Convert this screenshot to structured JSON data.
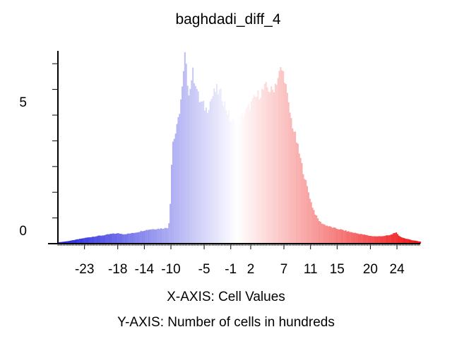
{
  "chart_data": {
    "type": "bar",
    "title": "baghdadi_diff_4",
    "xlabel": "X-AXIS: Cell Values",
    "ylabel": "Y-AXIS: Number of cells in hundreds",
    "x_ticks": [
      "-23",
      "-18",
      "-14",
      "-10",
      "-5",
      "-1",
      "2",
      "7",
      "11",
      "15",
      "20",
      "24"
    ],
    "x_tick_values": [
      -23,
      -18,
      -14,
      -10,
      -5,
      -1,
      2,
      7,
      11,
      15,
      20,
      24
    ],
    "y_ticks": [
      "0",
      "5"
    ],
    "y_tick_values": [
      0,
      5
    ],
    "xlim": [
      -27,
      27.5
    ],
    "ylim": [
      0,
      7.5
    ],
    "grid": false,
    "colors": {
      "negative": "#2222dd",
      "zero": "#ffffff",
      "positive": "#ee1111"
    },
    "bin_width": 0.2,
    "profile_points": [
      [
        -27.0,
        0.05
      ],
      [
        -26.0,
        0.08
      ],
      [
        -25.0,
        0.12
      ],
      [
        -24.0,
        0.17
      ],
      [
        -23.0,
        0.22
      ],
      [
        -22.0,
        0.26
      ],
      [
        -21.0,
        0.3
      ],
      [
        -20.0,
        0.33
      ],
      [
        -19.0,
        0.38
      ],
      [
        -18.0,
        0.4
      ],
      [
        -17.0,
        0.37
      ],
      [
        -16.0,
        0.4
      ],
      [
        -15.0,
        0.45
      ],
      [
        -14.0,
        0.52
      ],
      [
        -13.0,
        0.56
      ],
      [
        -12.0,
        0.58
      ],
      [
        -11.0,
        0.6
      ],
      [
        -10.5,
        0.62
      ],
      [
        -10.2,
        0.9
      ],
      [
        -10.0,
        2.3
      ],
      [
        -9.8,
        3.9
      ],
      [
        -9.4,
        4.2
      ],
      [
        -9.0,
        4.6
      ],
      [
        -8.6,
        5.4
      ],
      [
        -8.2,
        6.2
      ],
      [
        -7.9,
        7.3
      ],
      [
        -7.6,
        6.5
      ],
      [
        -7.2,
        5.8
      ],
      [
        -6.8,
        6.7
      ],
      [
        -6.3,
        6.3
      ],
      [
        -5.8,
        5.6
      ],
      [
        -5.2,
        5.4
      ],
      [
        -4.6,
        5.2
      ],
      [
        -4.0,
        5.6
      ],
      [
        -3.2,
        6.0
      ],
      [
        -2.4,
        5.8
      ],
      [
        -1.6,
        5.2
      ],
      [
        -1.0,
        4.8
      ],
      [
        -0.5,
        4.7
      ],
      [
        0.0,
        4.8
      ],
      [
        0.6,
        4.9
      ],
      [
        1.2,
        5.1
      ],
      [
        2.0,
        5.4
      ],
      [
        2.8,
        5.7
      ],
      [
        3.6,
        5.9
      ],
      [
        4.4,
        6.1
      ],
      [
        5.2,
        5.9
      ],
      [
        6.0,
        6.4
      ],
      [
        6.6,
        6.8
      ],
      [
        7.1,
        6.5
      ],
      [
        7.6,
        5.5
      ],
      [
        8.2,
        4.7
      ],
      [
        8.8,
        4.1
      ],
      [
        9.4,
        3.4
      ],
      [
        10.0,
        2.7
      ],
      [
        10.6,
        2.1
      ],
      [
        11.2,
        1.5
      ],
      [
        11.8,
        1.1
      ],
      [
        12.4,
        0.85
      ],
      [
        13.0,
        0.75
      ],
      [
        14.0,
        0.65
      ],
      [
        15.0,
        0.58
      ],
      [
        16.0,
        0.52
      ],
      [
        17.0,
        0.45
      ],
      [
        18.0,
        0.4
      ],
      [
        19.0,
        0.35
      ],
      [
        20.0,
        0.3
      ],
      [
        21.0,
        0.28
      ],
      [
        22.0,
        0.3
      ],
      [
        23.0,
        0.33
      ],
      [
        23.8,
        0.45
      ],
      [
        24.3,
        0.3
      ],
      [
        25.0,
        0.22
      ],
      [
        26.0,
        0.15
      ],
      [
        27.5,
        0.08
      ]
    ]
  }
}
